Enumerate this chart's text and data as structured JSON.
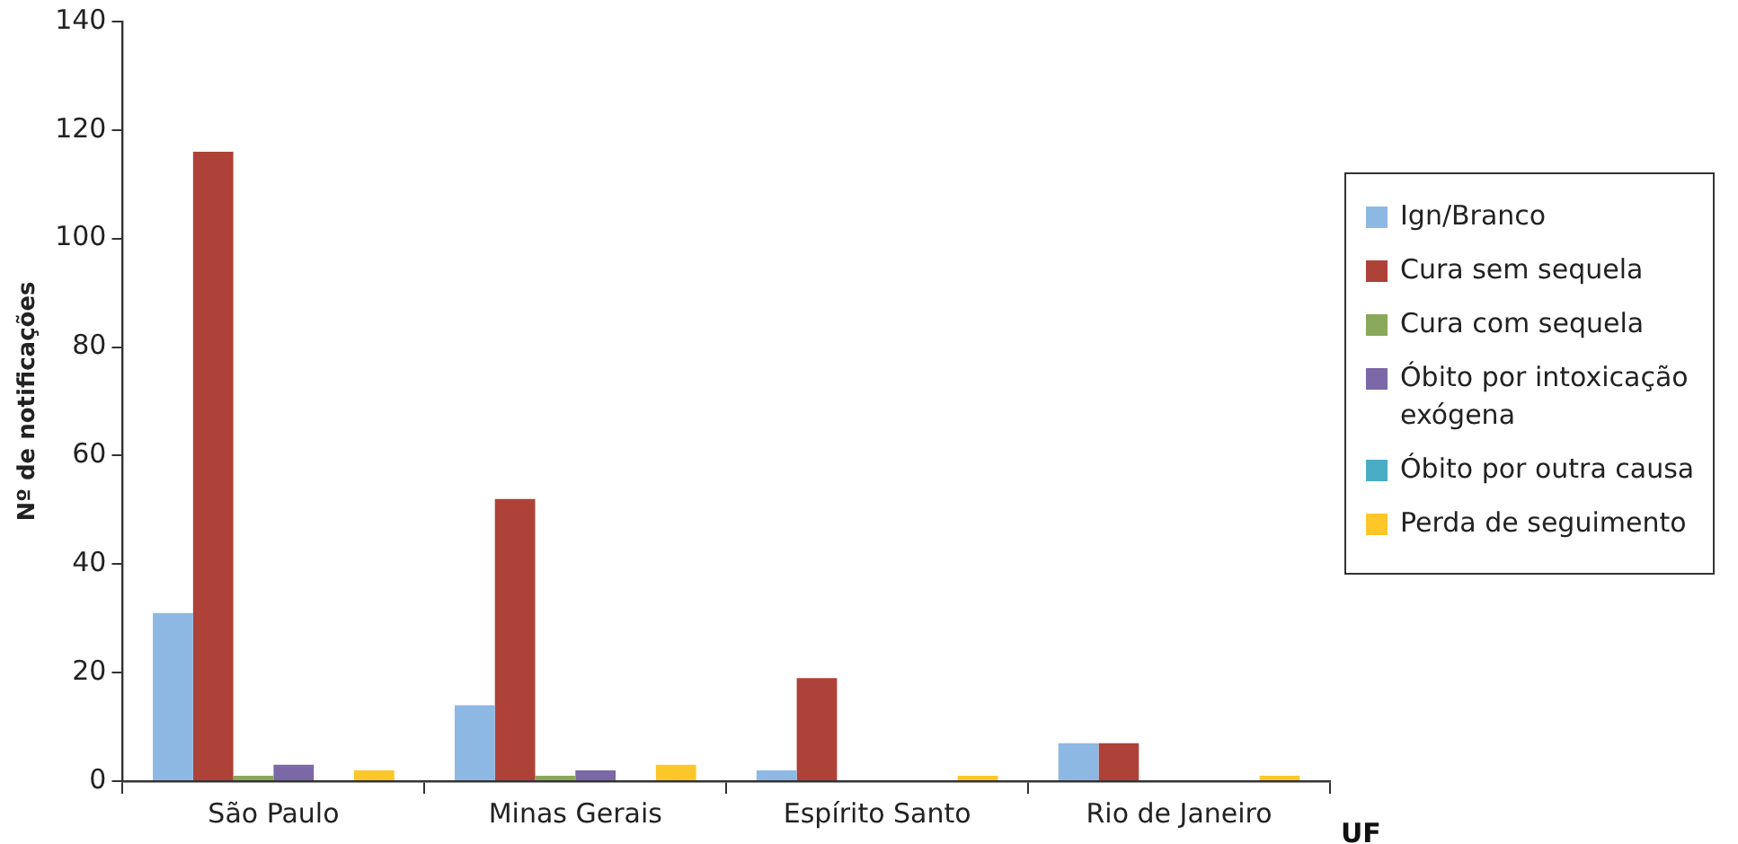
{
  "chart_data": {
    "type": "bar",
    "xlabel": "UF",
    "ylabel": "Nº de notificações",
    "categories": [
      "São Paulo",
      "Minas Gerais",
      "Espírito Santo",
      "Rio de Janeiro"
    ],
    "series": [
      {
        "name": "Ign/Branco",
        "color": "#8eb8e4",
        "values": [
          31,
          14,
          2,
          7
        ]
      },
      {
        "name": "Cura sem sequela",
        "color": "#ae4238",
        "values": [
          116,
          52,
          19,
          7
        ]
      },
      {
        "name": "Cura com sequela",
        "color": "#8aa85a",
        "values": [
          1,
          1,
          0,
          0
        ]
      },
      {
        "name": "Óbito por intoxicação exógena",
        "color": "#7b68a6",
        "values": [
          3,
          2,
          0,
          0
        ]
      },
      {
        "name": "Óbito por outra causa",
        "color": "#4bacc6",
        "values": [
          0,
          0,
          0,
          0
        ]
      },
      {
        "name": "Perda de seguimento",
        "color": "#fdc72a",
        "values": [
          2,
          3,
          1,
          1
        ]
      }
    ],
    "ylim": [
      0,
      140
    ],
    "yticks": [
      0,
      20,
      40,
      60,
      80,
      100,
      120,
      140
    ],
    "grid": false,
    "legend": "right"
  }
}
